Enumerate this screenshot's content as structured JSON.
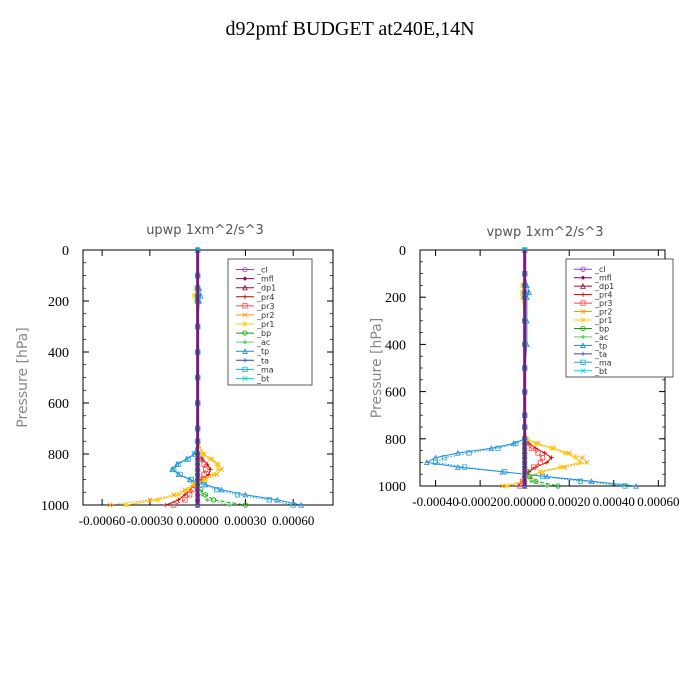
{
  "page": {
    "title": "d92pmf  BUDGET at240E,14N"
  },
  "chart_data": [
    {
      "type": "line",
      "title": "upwp   1xm^2/s^3",
      "ylabel": "Pressure [hPa]",
      "ylim": [
        1000,
        0
      ],
      "yticks": [
        0,
        200,
        400,
        600,
        800,
        1000
      ],
      "ytick_labels": [
        "0",
        "200",
        "400",
        "600",
        "800",
        "1000"
      ],
      "xlim": [
        -0.00072,
        0.00085
      ],
      "xticks": [
        -0.0006,
        -0.0003,
        0,
        0.0003,
        0.0006
      ],
      "xtick_labels": [
        "-0.00060",
        "-0.00030",
        "0.00000",
        "0.00030",
        "0.00060"
      ],
      "legend_position": "top-right",
      "pressure": [
        0,
        100,
        150,
        180,
        200,
        300,
        400,
        500,
        600,
        700,
        750,
        800,
        820,
        840,
        860,
        880,
        900,
        920,
        940,
        960,
        980,
        1000
      ],
      "series": [
        {
          "name": "_cl",
          "color": "#8844cc",
          "values": [
            0,
            0,
            0,
            0,
            0,
            0,
            0,
            0,
            0,
            0,
            0,
            0,
            0,
            0,
            0,
            0,
            0,
            0,
            0,
            0,
            0,
            0
          ]
        },
        {
          "name": "_mfl",
          "color": "#990066",
          "values": [
            0,
            0,
            0,
            0,
            0,
            0,
            0,
            0,
            0,
            0,
            0,
            0,
            0,
            0,
            0,
            0,
            0,
            0,
            0,
            0,
            0,
            0
          ]
        },
        {
          "name": "_dp1",
          "color": "#aa0033",
          "values": [
            0,
            0,
            0,
            0,
            0,
            0,
            0,
            0,
            0,
            0,
            0,
            0,
            0,
            0,
            0,
            0,
            0,
            0,
            0,
            0,
            0,
            0
          ]
        },
        {
          "name": "_pr4",
          "color": "#cc0000",
          "values": [
            0,
            0,
            0,
            0,
            0,
            0,
            0,
            0,
            0,
            0,
            0,
            0,
            3e-05,
            6e-05,
            8e-05,
            7e-05,
            3e-05,
            -2e-05,
            -5e-05,
            -8e-05,
            -0.00012,
            -0.0002
          ]
        },
        {
          "name": "_pr3",
          "color": "#ff4444",
          "values": [
            0,
            0,
            0,
            0,
            0,
            0,
            0,
            0,
            0,
            0,
            0,
            0,
            2e-05,
            4e-05,
            5e-05,
            4e-05,
            2e-05,
            -1e-05,
            -3e-05,
            -5e-05,
            -8e-05,
            -0.00015
          ]
        },
        {
          "name": "_pr2",
          "color": "#ff9900",
          "values": [
            0,
            0,
            -1e-05,
            -2e-05,
            -1e-05,
            0,
            0,
            0,
            0,
            0,
            0,
            4e-05,
            9e-05,
            0.00013,
            0.00015,
            0.00012,
            5e-05,
            -3e-05,
            -8e-05,
            -0.00015,
            -0.0003,
            -0.00055
          ]
        },
        {
          "name": "_pr1",
          "color": "#ffcc00",
          "values": [
            0,
            0,
            -1e-05,
            -2e-05,
            -1e-05,
            0,
            0,
            0,
            0,
            0,
            0,
            3e-05,
            8e-05,
            0.00012,
            0.00013,
            0.0001,
            4e-05,
            -2e-05,
            -6e-05,
            -0.00012,
            -0.00025,
            -0.00045
          ]
        },
        {
          "name": "_bp",
          "color": "#00aa00",
          "values": [
            0,
            0,
            0,
            0,
            0,
            0,
            0,
            0,
            0,
            0,
            0,
            0,
            0,
            0,
            0,
            0,
            0,
            0,
            2e-05,
            5e-05,
            0.0001,
            0.0003
          ]
        },
        {
          "name": "_ac",
          "color": "#66cc66",
          "values": [
            0,
            0,
            0,
            0,
            0,
            0,
            0,
            0,
            0,
            0,
            0,
            0,
            0,
            0,
            0,
            0,
            0,
            0,
            1e-05,
            3e-05,
            6e-05,
            0.0002
          ]
        },
        {
          "name": "_tp",
          "color": "#2288dd",
          "values": [
            0,
            0,
            1e-05,
            2e-05,
            1e-05,
            0,
            0,
            0,
            0,
            0,
            0,
            -2e-05,
            -7e-05,
            -0.00013,
            -0.00016,
            -0.00012,
            -5e-05,
            5e-05,
            0.00015,
            0.0003,
            0.0005,
            0.00065
          ]
        },
        {
          "name": "_ta",
          "color": "#3344cc",
          "values": [
            0,
            0,
            0,
            0,
            0,
            0,
            0,
            0,
            0,
            0,
            0,
            0,
            0,
            0,
            0,
            0,
            0,
            0,
            0,
            0,
            0,
            0
          ]
        },
        {
          "name": "_ma",
          "color": "#22aacc",
          "values": [
            0,
            0,
            0,
            0,
            0,
            0,
            0,
            0,
            0,
            0,
            0,
            -2e-05,
            -6e-05,
            -0.00012,
            -0.00015,
            -0.00011,
            -4e-05,
            4e-05,
            0.00012,
            0.00025,
            0.00045,
            0.0006
          ]
        },
        {
          "name": "_bt",
          "color": "#00dddd",
          "values": [
            0,
            0,
            0,
            0,
            0,
            0,
            0,
            0,
            0,
            0,
            0,
            0,
            0,
            0,
            0,
            0,
            0,
            0,
            0,
            0,
            0,
            0
          ]
        }
      ]
    },
    {
      "type": "line",
      "title": "vpwp   1xm^2/s^3",
      "ylabel": "Pressure [hPa]",
      "ylim": [
        1000,
        0
      ],
      "yticks": [
        0,
        200,
        400,
        600,
        800,
        1000
      ],
      "ytick_labels": [
        "0",
        "200",
        "400",
        "600",
        "800",
        "1000"
      ],
      "xlim": [
        -0.00047,
        0.00063
      ],
      "xticks": [
        -0.0004,
        -0.0002,
        0,
        0.0002,
        0.0004,
        0.0006
      ],
      "xtick_labels": [
        "-0.00040",
        "-0.00020",
        "0.00000",
        "0.00020",
        "0.00040",
        "0.00060"
      ],
      "legend_position": "top-right",
      "pressure": [
        0,
        100,
        150,
        180,
        200,
        300,
        400,
        500,
        600,
        700,
        750,
        800,
        820,
        840,
        860,
        880,
        900,
        920,
        940,
        960,
        980,
        1000
      ],
      "series": [
        {
          "name": "_cl",
          "color": "#8844cc",
          "values": [
            0,
            0,
            0,
            0,
            0,
            0,
            0,
            0,
            0,
            0,
            0,
            0,
            0,
            0,
            0,
            0,
            0,
            0,
            0,
            0,
            0,
            0
          ]
        },
        {
          "name": "_mfl",
          "color": "#990066",
          "values": [
            0,
            0,
            0,
            0,
            0,
            0,
            0,
            0,
            0,
            0,
            0,
            0,
            0,
            0,
            0,
            0,
            0,
            0,
            0,
            0,
            0,
            0
          ]
        },
        {
          "name": "_dp1",
          "color": "#aa0033",
          "values": [
            0,
            0,
            0,
            0,
            0,
            0,
            0,
            0,
            0,
            0,
            0,
            0,
            0,
            0,
            0,
            0,
            0,
            0,
            0,
            0,
            0,
            0
          ]
        },
        {
          "name": "_pr4",
          "color": "#cc0000",
          "values": [
            0,
            0,
            0,
            0,
            0,
            0,
            0,
            0,
            0,
            0,
            0,
            0,
            2e-05,
            5e-05,
            9e-05,
            0.00012,
            0.0001,
            5e-05,
            2e-05,
            0,
            -1e-05,
            -3e-05
          ]
        },
        {
          "name": "_pr3",
          "color": "#ff4444",
          "values": [
            0,
            0,
            0,
            0,
            0,
            0,
            0,
            0,
            0,
            0,
            0,
            0,
            1e-05,
            3e-05,
            6e-05,
            8e-05,
            7e-05,
            4e-05,
            1e-05,
            0,
            -1e-05,
            -2e-05
          ]
        },
        {
          "name": "_pr2",
          "color": "#ff9900",
          "values": [
            0,
            0,
            -1e-05,
            -1e-05,
            -1e-05,
            0,
            0,
            0,
            0,
            0,
            0,
            1e-05,
            6e-05,
            0.00013,
            0.0002,
            0.00026,
            0.00028,
            0.00018,
            8e-05,
            3e-05,
            0,
            -0.0001
          ]
        },
        {
          "name": "_pr1",
          "color": "#ffcc00",
          "values": [
            0,
            0,
            -1e-05,
            -1e-05,
            -1e-05,
            0,
            0,
            0,
            0,
            0,
            0,
            1e-05,
            5e-05,
            0.00012,
            0.00018,
            0.00023,
            0.00025,
            0.00016,
            7e-05,
            2e-05,
            0,
            -8e-05
          ]
        },
        {
          "name": "_bp",
          "color": "#00aa00",
          "values": [
            0,
            0,
            0,
            0,
            0,
            0,
            0,
            0,
            0,
            0,
            0,
            0,
            0,
            0,
            0,
            0,
            0,
            0,
            1e-05,
            2e-05,
            5e-05,
            0.00015
          ]
        },
        {
          "name": "_ac",
          "color": "#66cc66",
          "values": [
            0,
            0,
            0,
            0,
            0,
            0,
            0,
            0,
            0,
            0,
            0,
            0,
            0,
            0,
            0,
            0,
            0,
            0,
            0,
            1e-05,
            3e-05,
            0.0001
          ]
        },
        {
          "name": "_tp",
          "color": "#2288dd",
          "values": [
            0,
            0,
            1e-05,
            2e-05,
            1e-05,
            1e-05,
            1e-05,
            0,
            0,
            0,
            0,
            0,
            -5e-05,
            -0.00015,
            -0.0003,
            -0.0004,
            -0.00044,
            -0.0003,
            -0.0001,
            0.0001,
            0.0003,
            0.0005
          ]
        },
        {
          "name": "_ta",
          "color": "#3344cc",
          "values": [
            0,
            0,
            0,
            0,
            0,
            0,
            0,
            0,
            0,
            0,
            0,
            0,
            0,
            0,
            0,
            0,
            0,
            0,
            0,
            0,
            0,
            0
          ]
        },
        {
          "name": "_ma",
          "color": "#22aacc",
          "values": [
            0,
            0,
            0,
            0,
            0,
            0,
            0,
            0,
            0,
            0,
            0,
            0,
            -4e-05,
            -0.00012,
            -0.00025,
            -0.00036,
            -0.0004,
            -0.00027,
            -9e-05,
            8e-05,
            0.00025,
            0.00045
          ]
        },
        {
          "name": "_bt",
          "color": "#00dddd",
          "values": [
            0,
            0,
            0,
            0,
            0,
            0,
            0,
            0,
            0,
            0,
            0,
            0,
            0,
            0,
            0,
            0,
            0,
            0,
            0,
            0,
            0,
            0
          ]
        }
      ]
    }
  ]
}
